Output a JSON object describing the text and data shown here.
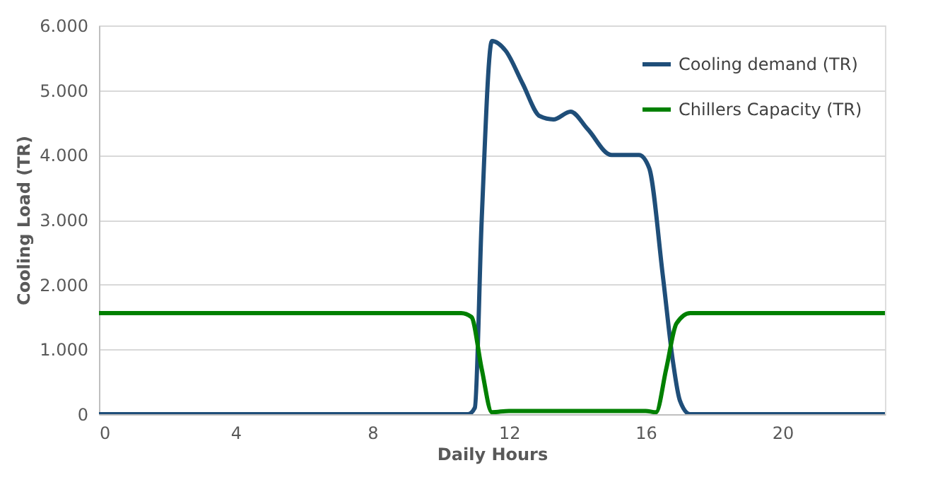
{
  "chart_data": {
    "type": "line",
    "xlabel": "Daily Hours",
    "ylabel": "Cooling Load (TR)",
    "xlim": [
      0,
      23
    ],
    "xticks": [
      0,
      4,
      8,
      12,
      16,
      20
    ],
    "ylim": [
      0,
      6000
    ],
    "yticks": [
      {
        "value": 0,
        "label": "0"
      },
      {
        "value": 1000,
        "label": "1.000"
      },
      {
        "value": 2000,
        "label": "2.000"
      },
      {
        "value": 3000,
        "label": "3.000"
      },
      {
        "value": 4000,
        "label": "4.000"
      },
      {
        "value": 5000,
        "label": "5.000"
      },
      {
        "value": 6000,
        "label": "6.000"
      }
    ],
    "grid": "y",
    "legend": "top right",
    "marker": "none",
    "line_style": "solid",
    "series": [
      {
        "name": "Cooling demand (TR)",
        "color": "#1f4e79",
        "x": [
          0,
          10.8,
          11.0,
          11.2,
          11.5,
          11.9,
          12.4,
          12.9,
          13.3,
          13.8,
          14.3,
          15.0,
          15.8,
          16.1,
          16.5,
          16.8,
          17.0,
          17.3,
          23
        ],
        "values": [
          0,
          0,
          100,
          3000,
          5760,
          5610,
          5100,
          4600,
          4550,
          4670,
          4400,
          4000,
          4000,
          3800,
          2140,
          800,
          210,
          0,
          0
        ]
      },
      {
        "name": "Chillers Capacity (TR)",
        "color": "#008000",
        "x": [
          0,
          10.6,
          10.9,
          11.2,
          11.5,
          12,
          16,
          16.3,
          16.6,
          16.9,
          17.3,
          23
        ],
        "values": [
          1560,
          1560,
          1500,
          700,
          30,
          50,
          50,
          30,
          700,
          1400,
          1560,
          1560
        ]
      }
    ]
  }
}
